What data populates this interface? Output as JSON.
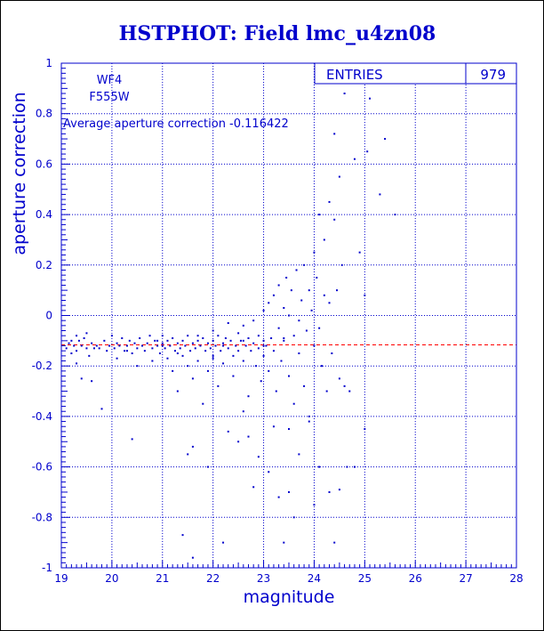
{
  "chart_data": {
    "type": "scatter",
    "title": "HSTPHOT: Field lmc_u4zn08",
    "xlabel": "magnitude",
    "ylabel": "aperture correction",
    "xlim": [
      19,
      28
    ],
    "ylim": [
      -1,
      1
    ],
    "x_ticks": [
      "19",
      "20",
      "21",
      "22",
      "23",
      "24",
      "25",
      "26",
      "27",
      "28"
    ],
    "y_ticks": [
      "-1",
      "-0.8",
      "-0.6",
      "-0.4",
      "-0.2",
      "0",
      "0.2",
      "0.4",
      "0.6",
      "0.8",
      "1"
    ],
    "grid": true,
    "annotations": {
      "chip": "WF4",
      "filter": "F555W",
      "average_text": "Average aperture correction -0.116422"
    },
    "stats_box": {
      "label": "ENTRIES",
      "value": "979",
      "placement": "top-right"
    },
    "reference_line": {
      "y": -0.116422,
      "style": "dashed",
      "color": "#ff0000"
    },
    "colors": {
      "text": "#0000cc",
      "points": "#0000cc",
      "frame": "#000000",
      "grid": "#0000cc"
    },
    "series": [
      {
        "points": [
          [
            19.1,
            -0.13
          ],
          [
            19.15,
            -0.11
          ],
          [
            19.2,
            -0.1
          ],
          [
            19.2,
            -0.15
          ],
          [
            19.25,
            -0.12
          ],
          [
            19.3,
            -0.08
          ],
          [
            19.3,
            -0.14
          ],
          [
            19.35,
            -0.1
          ],
          [
            19.4,
            -0.12
          ],
          [
            19.45,
            -0.09
          ],
          [
            19.5,
            -0.13
          ],
          [
            19.5,
            -0.07
          ],
          [
            19.55,
            -0.16
          ],
          [
            19.6,
            -0.11
          ],
          [
            19.6,
            -0.26
          ],
          [
            19.65,
            -0.13
          ],
          [
            19.7,
            -0.12
          ],
          [
            19.4,
            -0.25
          ],
          [
            19.3,
            -0.19
          ],
          [
            19.8,
            -0.37
          ],
          [
            19.75,
            -0.13
          ],
          [
            19.85,
            -0.1
          ],
          [
            19.9,
            -0.14
          ],
          [
            19.95,
            -0.12
          ],
          [
            20.0,
            -0.08
          ],
          [
            20.05,
            -0.13
          ],
          [
            20.1,
            -0.11
          ],
          [
            20.1,
            -0.17
          ],
          [
            20.15,
            -0.12
          ],
          [
            20.2,
            -0.09
          ],
          [
            20.25,
            -0.14
          ],
          [
            20.3,
            -0.12
          ],
          [
            20.35,
            -0.1
          ],
          [
            20.4,
            -0.15
          ],
          [
            20.45,
            -0.11
          ],
          [
            20.5,
            -0.13
          ],
          [
            20.5,
            -0.2
          ],
          [
            20.55,
            -0.09
          ],
          [
            20.6,
            -0.12
          ],
          [
            20.65,
            -0.14
          ],
          [
            20.7,
            -0.11
          ],
          [
            20.75,
            -0.08
          ],
          [
            20.8,
            -0.13
          ],
          [
            20.8,
            -0.18
          ],
          [
            20.85,
            -0.1
          ],
          [
            20.9,
            -0.12
          ],
          [
            20.95,
            -0.15
          ],
          [
            21.0,
            -0.11
          ],
          [
            21.0,
            -0.08
          ],
          [
            21.05,
            -0.13
          ],
          [
            21.1,
            -0.1
          ],
          [
            21.1,
            -0.17
          ],
          [
            21.15,
            -0.12
          ],
          [
            21.2,
            -0.09
          ],
          [
            21.2,
            -0.22
          ],
          [
            21.25,
            -0.14
          ],
          [
            21.3,
            -0.11
          ],
          [
            21.3,
            -0.3
          ],
          [
            21.35,
            -0.13
          ],
          [
            21.4,
            -0.1
          ],
          [
            21.4,
            -0.16
          ],
          [
            21.45,
            -0.12
          ],
          [
            21.5,
            -0.08
          ],
          [
            21.5,
            -0.2
          ],
          [
            21.55,
            -0.14
          ],
          [
            21.6,
            -0.11
          ],
          [
            21.6,
            -0.25
          ],
          [
            21.65,
            -0.13
          ],
          [
            21.7,
            -0.1
          ],
          [
            21.7,
            -0.18
          ],
          [
            21.75,
            -0.12
          ],
          [
            21.8,
            -0.09
          ],
          [
            21.8,
            -0.35
          ],
          [
            21.85,
            -0.14
          ],
          [
            21.9,
            -0.11
          ],
          [
            21.9,
            -0.22
          ],
          [
            21.95,
            -0.13
          ],
          [
            22.0,
            -0.1
          ],
          [
            22.0,
            -0.06
          ],
          [
            22.0,
            -0.17
          ],
          [
            22.05,
            -0.12
          ],
          [
            22.1,
            -0.08
          ],
          [
            22.1,
            -0.28
          ],
          [
            22.15,
            -0.14
          ],
          [
            22.2,
            -0.11
          ],
          [
            22.2,
            -0.19
          ],
          [
            22.25,
            -0.09
          ],
          [
            22.3,
            -0.13
          ],
          [
            22.3,
            -0.03
          ],
          [
            22.35,
            -0.1
          ],
          [
            22.4,
            -0.16
          ],
          [
            22.4,
            -0.24
          ],
          [
            22.45,
            -0.12
          ],
          [
            22.5,
            -0.07
          ],
          [
            22.5,
            -0.14
          ],
          [
            22.55,
            -0.1
          ],
          [
            22.6,
            -0.18
          ],
          [
            22.6,
            -0.04
          ],
          [
            22.65,
            -0.12
          ],
          [
            22.7,
            -0.09
          ],
          [
            22.7,
            -0.32
          ],
          [
            22.75,
            -0.14
          ],
          [
            22.8,
            -0.11
          ],
          [
            22.8,
            -0.02
          ],
          [
            22.85,
            -0.2
          ],
          [
            22.9,
            -0.08
          ],
          [
            22.9,
            -0.13
          ],
          [
            22.95,
            -0.26
          ],
          [
            23.0,
            -0.1
          ],
          [
            23.0,
            0.02
          ],
          [
            23.0,
            -0.16
          ],
          [
            23.05,
            -0.12
          ],
          [
            23.1,
            0.05
          ],
          [
            23.1,
            -0.22
          ],
          [
            23.15,
            -0.09
          ],
          [
            23.2,
            0.08
          ],
          [
            23.2,
            -0.14
          ],
          [
            23.25,
            -0.3
          ],
          [
            23.3,
            0.12
          ],
          [
            23.3,
            -0.05
          ],
          [
            23.35,
            -0.18
          ],
          [
            23.4,
            0.03
          ],
          [
            23.4,
            -0.1
          ],
          [
            23.45,
            0.15
          ],
          [
            23.5,
            -0.24
          ],
          [
            23.5,
            0.0
          ],
          [
            23.55,
            0.1
          ],
          [
            23.6,
            -0.08
          ],
          [
            23.6,
            -0.35
          ],
          [
            23.65,
            0.18
          ],
          [
            23.7,
            -0.02
          ],
          [
            23.7,
            -0.15
          ],
          [
            23.75,
            0.06
          ],
          [
            23.8,
            -0.28
          ],
          [
            23.8,
            0.2
          ],
          [
            23.85,
            -0.06
          ],
          [
            23.9,
            0.1
          ],
          [
            23.9,
            -0.4
          ],
          [
            23.95,
            0.02
          ],
          [
            24.0,
            0.25
          ],
          [
            24.0,
            -0.12
          ],
          [
            24.05,
            0.15
          ],
          [
            24.1,
            -0.05
          ],
          [
            24.1,
            0.4
          ],
          [
            24.15,
            -0.2
          ],
          [
            24.2,
            0.08
          ],
          [
            24.2,
            0.3
          ],
          [
            24.25,
            -0.3
          ],
          [
            24.3,
            0.45
          ],
          [
            24.3,
            0.05
          ],
          [
            24.35,
            -0.15
          ],
          [
            24.4,
            0.38
          ],
          [
            24.4,
            0.72
          ],
          [
            24.45,
            0.1
          ],
          [
            24.5,
            -0.25
          ],
          [
            24.5,
            0.55
          ],
          [
            24.55,
            0.2
          ],
          [
            24.6,
            -0.28
          ],
          [
            24.6,
            0.88
          ],
          [
            24.65,
            -0.6
          ],
          [
            24.7,
            -0.3
          ],
          [
            24.8,
            0.62
          ],
          [
            24.9,
            0.25
          ],
          [
            25.0,
            0.08
          ],
          [
            25.0,
            -0.45
          ],
          [
            25.05,
            0.65
          ],
          [
            25.1,
            0.86
          ],
          [
            25.3,
            0.48
          ],
          [
            25.4,
            0.7
          ],
          [
            25.6,
            0.4
          ],
          [
            21.5,
            -0.55
          ],
          [
            21.6,
            -0.52
          ],
          [
            21.4,
            -0.87
          ],
          [
            21.6,
            -0.96
          ],
          [
            22.2,
            -0.9
          ],
          [
            22.5,
            -0.5
          ],
          [
            22.6,
            -0.38
          ],
          [
            22.7,
            -0.48
          ],
          [
            22.8,
            -0.68
          ],
          [
            22.9,
            -0.56
          ],
          [
            23.1,
            -0.62
          ],
          [
            23.3,
            -0.72
          ],
          [
            23.4,
            -0.9
          ],
          [
            23.5,
            -0.7
          ],
          [
            23.6,
            -0.8
          ],
          [
            23.7,
            -0.55
          ],
          [
            23.9,
            -0.42
          ],
          [
            24.0,
            -0.75
          ],
          [
            24.1,
            -0.6
          ],
          [
            24.3,
            -0.7
          ],
          [
            24.4,
            -0.9
          ],
          [
            24.5,
            -0.69
          ],
          [
            20.4,
            -0.49
          ],
          [
            21.9,
            -0.6
          ],
          [
            22.3,
            -0.46
          ],
          [
            23.2,
            -0.44
          ],
          [
            23.5,
            -0.45
          ],
          [
            24.8,
            -0.6
          ],
          [
            22.0,
            -0.16
          ],
          [
            21.0,
            -0.12
          ],
          [
            20.3,
            -0.14
          ],
          [
            21.7,
            -0.08
          ],
          [
            22.2,
            -0.12
          ],
          [
            22.6,
            -0.1
          ],
          [
            23.0,
            -0.12
          ],
          [
            23.4,
            -0.09
          ],
          [
            21.3,
            -0.15
          ],
          [
            20.9,
            -0.1
          ]
        ]
      }
    ]
  }
}
